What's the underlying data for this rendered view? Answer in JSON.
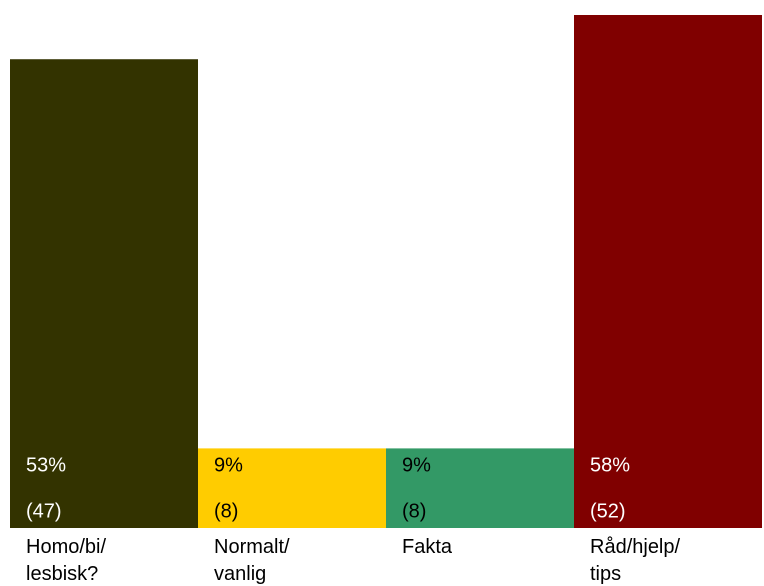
{
  "chart_data": {
    "type": "bar",
    "categories": [
      [
        "Homo/bi/",
        "lesbisk?"
      ],
      [
        "Normalt/",
        "vanlig"
      ],
      [
        "Fakta"
      ],
      [
        "Råd/hjelp/",
        "tips"
      ]
    ],
    "values": [
      53,
      9,
      9,
      58
    ],
    "value_labels": [
      "53%",
      "9%",
      "9%",
      "58%"
    ],
    "counts": [
      47,
      8,
      8,
      52
    ],
    "count_labels": [
      "(47)",
      "(8)",
      "(8)",
      "(52)"
    ],
    "colors": [
      "#333300",
      "#ffcc00",
      "#339966",
      "#800000"
    ],
    "label_colors": [
      "#ffffff",
      "#000000",
      "#000000",
      "#ffffff"
    ],
    "ylim": [
      0,
      58
    ]
  }
}
